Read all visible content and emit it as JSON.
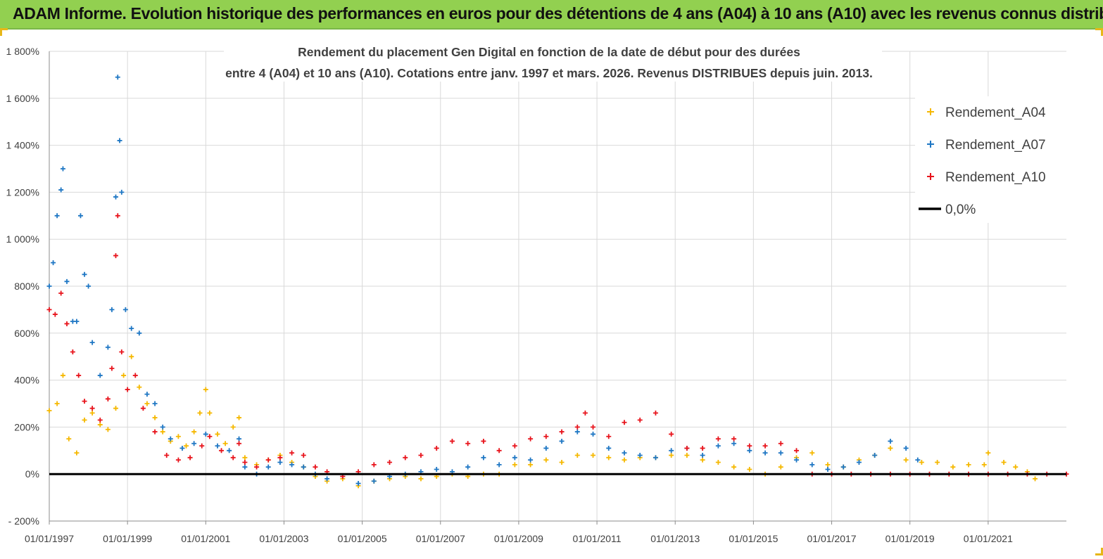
{
  "header": {
    "title": "ADAM Informe. Evolution historique des performances en euros pour des détentions de 4 ans (A04) à 10 ans (A10) avec les revenus connus distribués"
  },
  "colors": {
    "banner": "#92d050",
    "a04": "#f5b800",
    "a07": "#1f77c4",
    "a10": "#e8141c",
    "zero_line": "#000000",
    "grid": "#d9d9d9"
  },
  "chart_data": {
    "type": "scatter",
    "title_line1": "Rendement du placement Gen Digital en fonction de la date de début pour des durées",
    "title_line2": "entre 4 (A04) et 10 ans (A10). Cotations entre janv. 1997 et mars. 2026. Revenus DISTRIBUES depuis juin. 2013.",
    "xlabel": "",
    "ylabel": "",
    "xlim": [
      1997.0,
      2023.0
    ],
    "ylim": [
      -200,
      1800
    ],
    "x_ticks": [
      1997,
      1999,
      2001,
      2003,
      2005,
      2007,
      2009,
      2011,
      2013,
      2015,
      2017,
      2019,
      2021
    ],
    "x_tick_labels": [
      "01/01/1997",
      "01/01/1999",
      "01/01/2001",
      "01/01/2003",
      "01/01/2005",
      "01/01/2007",
      "01/01/2009",
      "01/01/2011",
      "01/01/2013",
      "01/01/2015",
      "01/01/2017",
      "01/01/2019",
      "01/01/2021"
    ],
    "y_ticks": [
      -200,
      0,
      200,
      400,
      600,
      800,
      1000,
      1200,
      1400,
      1600,
      1800
    ],
    "y_tick_labels": [
      "- 200%",
      "0%",
      "200%",
      "400%",
      "600%",
      "800%",
      "1 000%",
      "1 200%",
      "1 400%",
      "1 600%",
      "1 800%"
    ],
    "legend_position": "top-right",
    "legend": [
      {
        "name": "Rendement_A04",
        "marker": "+",
        "color": "#f5b800"
      },
      {
        "name": "Rendement_A07",
        "marker": "+",
        "color": "#1f77c4"
      },
      {
        "name": "Rendement_A10",
        "marker": "+",
        "color": "#e8141c"
      },
      {
        "name": "0,0%",
        "marker": "line",
        "color": "#000000"
      }
    ],
    "series": [
      {
        "name": "Rendement_A04",
        "color": "#f5b800",
        "points": [
          [
            1997.0,
            270
          ],
          [
            1997.2,
            300
          ],
          [
            1997.35,
            420
          ],
          [
            1997.5,
            150
          ],
          [
            1997.7,
            90
          ],
          [
            1997.9,
            230
          ],
          [
            1998.1,
            260
          ],
          [
            1998.3,
            210
          ],
          [
            1998.5,
            190
          ],
          [
            1998.7,
            280
          ],
          [
            1998.9,
            420
          ],
          [
            1999.1,
            500
          ],
          [
            1999.3,
            370
          ],
          [
            1999.5,
            300
          ],
          [
            1999.7,
            240
          ],
          [
            1999.9,
            180
          ],
          [
            2000.1,
            140
          ],
          [
            2000.3,
            160
          ],
          [
            2000.5,
            120
          ],
          [
            2000.7,
            180
          ],
          [
            2000.85,
            260
          ],
          [
            2001.0,
            360
          ],
          [
            2001.1,
            260
          ],
          [
            2001.3,
            170
          ],
          [
            2001.5,
            130
          ],
          [
            2001.7,
            200
          ],
          [
            2001.85,
            240
          ],
          [
            2002.0,
            70
          ],
          [
            2002.3,
            40
          ],
          [
            2002.6,
            60
          ],
          [
            2002.9,
            80
          ],
          [
            2003.2,
            50
          ],
          [
            2003.5,
            30
          ],
          [
            2003.8,
            -10
          ],
          [
            2004.1,
            -30
          ],
          [
            2004.5,
            -20
          ],
          [
            2004.9,
            -50
          ],
          [
            2005.3,
            -30
          ],
          [
            2005.7,
            -20
          ],
          [
            2006.1,
            -10
          ],
          [
            2006.5,
            -20
          ],
          [
            2006.9,
            -10
          ],
          [
            2007.3,
            0
          ],
          [
            2007.7,
            -10
          ],
          [
            2008.1,
            0
          ],
          [
            2008.5,
            0
          ],
          [
            2008.9,
            40
          ],
          [
            2009.3,
            40
          ],
          [
            2009.7,
            60
          ],
          [
            2010.1,
            50
          ],
          [
            2010.5,
            80
          ],
          [
            2010.9,
            80
          ],
          [
            2011.3,
            70
          ],
          [
            2011.7,
            60
          ],
          [
            2012.1,
            70
          ],
          [
            2012.5,
            70
          ],
          [
            2012.9,
            80
          ],
          [
            2013.3,
            80
          ],
          [
            2013.7,
            60
          ],
          [
            2014.1,
            50
          ],
          [
            2014.5,
            30
          ],
          [
            2014.9,
            20
          ],
          [
            2015.3,
            0
          ],
          [
            2015.7,
            30
          ],
          [
            2016.1,
            70
          ],
          [
            2016.5,
            90
          ],
          [
            2016.9,
            40
          ],
          [
            2017.3,
            30
          ],
          [
            2017.7,
            60
          ],
          [
            2018.1,
            80
          ],
          [
            2018.5,
            110
          ],
          [
            2018.9,
            60
          ],
          [
            2019.3,
            50
          ],
          [
            2019.7,
            50
          ],
          [
            2020.1,
            30
          ],
          [
            2020.5,
            40
          ],
          [
            2020.9,
            40
          ],
          [
            2021.0,
            90
          ],
          [
            2021.4,
            50
          ],
          [
            2021.7,
            30
          ],
          [
            2022.0,
            10
          ],
          [
            2022.2,
            -20
          ]
        ]
      },
      {
        "name": "Rendement_A07",
        "color": "#1f77c4",
        "points": [
          [
            1997.0,
            800
          ],
          [
            1997.1,
            900
          ],
          [
            1997.2,
            1100
          ],
          [
            1997.3,
            1210
          ],
          [
            1997.35,
            1300
          ],
          [
            1997.45,
            820
          ],
          [
            1997.6,
            650
          ],
          [
            1997.7,
            650
          ],
          [
            1997.8,
            1100
          ],
          [
            1997.9,
            850
          ],
          [
            1998.0,
            800
          ],
          [
            1998.1,
            560
          ],
          [
            1998.3,
            420
          ],
          [
            1998.5,
            540
          ],
          [
            1998.6,
            700
          ],
          [
            1998.7,
            1180
          ],
          [
            1998.75,
            1690
          ],
          [
            1998.8,
            1420
          ],
          [
            1998.85,
            1200
          ],
          [
            1998.95,
            700
          ],
          [
            1999.1,
            620
          ],
          [
            1999.3,
            600
          ],
          [
            1999.5,
            340
          ],
          [
            1999.7,
            300
          ],
          [
            1999.9,
            200
          ],
          [
            2000.1,
            150
          ],
          [
            2000.4,
            110
          ],
          [
            2000.7,
            130
          ],
          [
            2001.0,
            170
          ],
          [
            2001.3,
            120
          ],
          [
            2001.6,
            100
          ],
          [
            2001.85,
            150
          ],
          [
            2002.0,
            30
          ],
          [
            2002.3,
            0
          ],
          [
            2002.6,
            30
          ],
          [
            2002.9,
            50
          ],
          [
            2003.2,
            40
          ],
          [
            2003.5,
            30
          ],
          [
            2003.8,
            0
          ],
          [
            2004.1,
            -20
          ],
          [
            2004.5,
            -10
          ],
          [
            2004.9,
            -40
          ],
          [
            2005.3,
            -30
          ],
          [
            2005.7,
            -10
          ],
          [
            2006.1,
            0
          ],
          [
            2006.5,
            10
          ],
          [
            2006.9,
            20
          ],
          [
            2007.3,
            10
          ],
          [
            2007.7,
            30
          ],
          [
            2008.1,
            70
          ],
          [
            2008.5,
            40
          ],
          [
            2008.9,
            70
          ],
          [
            2009.3,
            60
          ],
          [
            2009.7,
            110
          ],
          [
            2010.1,
            140
          ],
          [
            2010.5,
            180
          ],
          [
            2010.9,
            170
          ],
          [
            2011.3,
            110
          ],
          [
            2011.7,
            90
          ],
          [
            2012.1,
            80
          ],
          [
            2012.5,
            70
          ],
          [
            2012.9,
            100
          ],
          [
            2013.3,
            110
          ],
          [
            2013.7,
            80
          ],
          [
            2014.1,
            120
          ],
          [
            2014.5,
            130
          ],
          [
            2014.9,
            100
          ],
          [
            2015.3,
            90
          ],
          [
            2015.7,
            90
          ],
          [
            2016.1,
            60
          ],
          [
            2016.5,
            40
          ],
          [
            2016.9,
            20
          ],
          [
            2017.3,
            30
          ],
          [
            2017.7,
            50
          ],
          [
            2018.1,
            80
          ],
          [
            2018.5,
            140
          ],
          [
            2018.9,
            110
          ],
          [
            2019.2,
            60
          ]
        ]
      },
      {
        "name": "Rendement_A10",
        "color": "#e8141c",
        "points": [
          [
            1997.0,
            700
          ],
          [
            1997.15,
            680
          ],
          [
            1997.3,
            770
          ],
          [
            1997.45,
            640
          ],
          [
            1997.6,
            520
          ],
          [
            1997.75,
            420
          ],
          [
            1997.9,
            310
          ],
          [
            1998.1,
            280
          ],
          [
            1998.3,
            230
          ],
          [
            1998.5,
            320
          ],
          [
            1998.6,
            450
          ],
          [
            1998.7,
            930
          ],
          [
            1998.75,
            1100
          ],
          [
            1998.85,
            520
          ],
          [
            1999.0,
            360
          ],
          [
            1999.2,
            420
          ],
          [
            1999.4,
            280
          ],
          [
            1999.7,
            180
          ],
          [
            2000.0,
            80
          ],
          [
            2000.3,
            60
          ],
          [
            2000.6,
            70
          ],
          [
            2000.9,
            120
          ],
          [
            2001.1,
            160
          ],
          [
            2001.4,
            100
          ],
          [
            2001.7,
            70
          ],
          [
            2001.85,
            130
          ],
          [
            2002.0,
            50
          ],
          [
            2002.3,
            30
          ],
          [
            2002.6,
            60
          ],
          [
            2002.9,
            70
          ],
          [
            2003.2,
            90
          ],
          [
            2003.5,
            80
          ],
          [
            2003.8,
            30
          ],
          [
            2004.1,
            10
          ],
          [
            2004.5,
            -10
          ],
          [
            2004.9,
            10
          ],
          [
            2005.3,
            40
          ],
          [
            2005.7,
            50
          ],
          [
            2006.1,
            70
          ],
          [
            2006.5,
            80
          ],
          [
            2006.9,
            110
          ],
          [
            2007.3,
            140
          ],
          [
            2007.7,
            130
          ],
          [
            2008.1,
            140
          ],
          [
            2008.5,
            100
          ],
          [
            2008.9,
            120
          ],
          [
            2009.3,
            150
          ],
          [
            2009.7,
            160
          ],
          [
            2010.1,
            180
          ],
          [
            2010.5,
            200
          ],
          [
            2010.7,
            260
          ],
          [
            2010.9,
            200
          ],
          [
            2011.3,
            160
          ],
          [
            2011.7,
            220
          ],
          [
            2012.1,
            230
          ],
          [
            2012.5,
            260
          ],
          [
            2012.9,
            170
          ],
          [
            2013.3,
            110
          ],
          [
            2013.7,
            110
          ],
          [
            2014.1,
            150
          ],
          [
            2014.5,
            150
          ],
          [
            2014.9,
            120
          ],
          [
            2015.3,
            120
          ],
          [
            2015.7,
            130
          ],
          [
            2016.1,
            100
          ],
          [
            2016.5,
            0
          ],
          [
            2017.0,
            0
          ],
          [
            2017.5,
            0
          ],
          [
            2018.0,
            0
          ],
          [
            2018.5,
            0
          ],
          [
            2019.0,
            0
          ],
          [
            2019.5,
            0
          ],
          [
            2020.0,
            0
          ],
          [
            2020.5,
            0
          ],
          [
            2021.0,
            0
          ],
          [
            2021.5,
            0
          ],
          [
            2022.0,
            0
          ],
          [
            2022.5,
            0
          ],
          [
            2023.0,
            0
          ]
        ]
      }
    ],
    "reference_line": {
      "name": "0,0%",
      "y": 0,
      "x_range": [
        1997.0,
        2023.0
      ]
    }
  }
}
